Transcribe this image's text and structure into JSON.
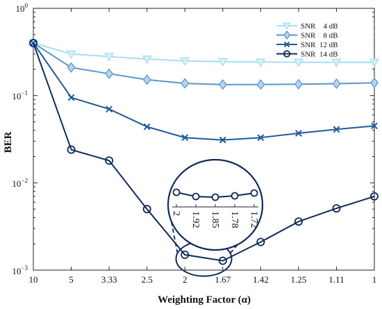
{
  "chart_data": {
    "type": "line",
    "xlabel": "Weighting Factor (α)",
    "ylabel": "BER",
    "y_scale": "log",
    "ylim": [
      0.001,
      1
    ],
    "yticks": [
      {
        "value": 1,
        "mantissa": "10",
        "exp": "0"
      },
      {
        "value": 0.1,
        "mantissa": "10",
        "exp": "−1"
      },
      {
        "value": 0.01,
        "mantissa": "10",
        "exp": "−2"
      },
      {
        "value": 0.001,
        "mantissa": "10",
        "exp": "−3"
      }
    ],
    "x": [
      "10",
      "5",
      "3.33",
      "2.5",
      "2",
      "1.67",
      "1.42",
      "1.25",
      "1.11",
      "1"
    ],
    "grid": false,
    "legend_position": "top-right",
    "series": [
      {
        "name": "SNR    4 dB",
        "color": "#a8def2",
        "marker": "triangle-down",
        "values": [
          0.4,
          0.3,
          0.28,
          0.262,
          0.25,
          0.245,
          0.242,
          0.241,
          0.241,
          0.241
        ]
      },
      {
        "name": "SNR    8 dB",
        "color": "#5a96cf",
        "marker": "diamond",
        "values": [
          0.4,
          0.21,
          0.178,
          0.152,
          0.138,
          0.134,
          0.134,
          0.135,
          0.137,
          0.14
        ]
      },
      {
        "name": "SNR  12 dB",
        "color": "#1f5a9a",
        "marker": "x",
        "values": [
          0.4,
          0.095,
          0.07,
          0.044,
          0.033,
          0.031,
          0.033,
          0.037,
          0.041,
          0.045
        ]
      },
      {
        "name": "SNR  14 dB",
        "color": "#0f2a5a",
        "marker": "circle",
        "values": [
          0.4,
          0.024,
          0.018,
          0.005,
          0.0015,
          0.00128,
          0.0021,
          0.0036,
          0.0051,
          0.007
        ]
      }
    ],
    "inset": {
      "x_ticks": [
        "2",
        "1.92",
        "1.85",
        "1.78",
        "1.72"
      ],
      "description_source_series": "SNR  14 dB"
    }
  }
}
